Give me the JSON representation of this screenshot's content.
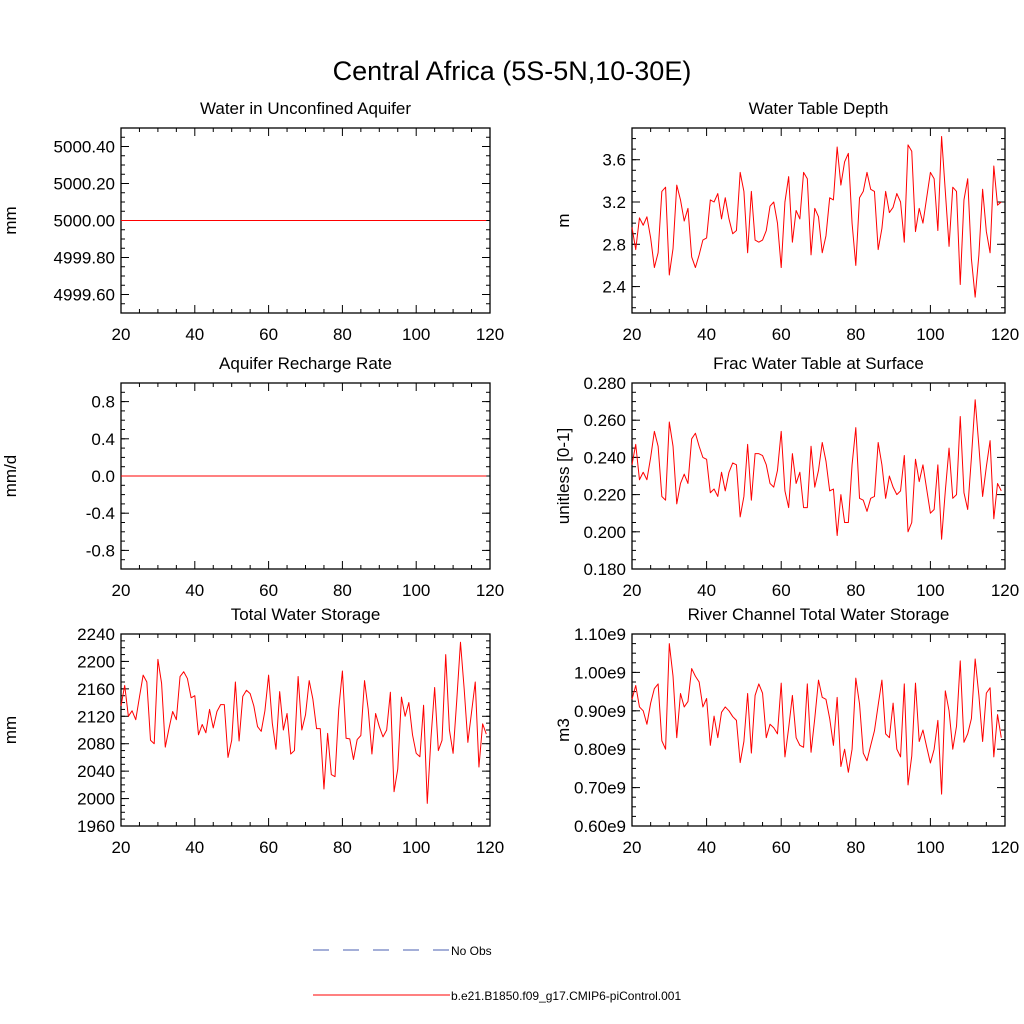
{
  "figure": {
    "title": "Central Africa (5S-5N,10-30E)"
  },
  "legend": {
    "entries": [
      {
        "label": "No Obs",
        "color": "#4a5fb0",
        "dash": true
      },
      {
        "label": "b.e21.B1850.f09_g17.CMIP6-piControl.001",
        "color": "#ff0000",
        "dash": false
      }
    ]
  },
  "chart_data": [
    {
      "type": "line",
      "title": "Water in Unconfined Aquifer",
      "ylabel": "mm",
      "xlim": [
        20,
        120
      ],
      "ylim": [
        4999.5,
        5000.5
      ],
      "xticks": [
        "20",
        "40",
        "60",
        "80",
        "100",
        "120"
      ],
      "yticks": [
        4999.6,
        4999.8,
        5000.0,
        5000.2,
        5000.4
      ],
      "ytick_labels": [
        "4999.60",
        "4999.80",
        "5000.00",
        "5000.20",
        "5000.40"
      ],
      "x_start": 20,
      "series": [
        {
          "name": "b.e21.B1850.f09_g17.CMIP6-piControl.001",
          "color": "#ff0000",
          "values": [
            5000,
            5000,
            5000,
            5000,
            5000,
            5000,
            5000,
            5000,
            5000,
            5000,
            5000,
            5000,
            5000,
            5000,
            5000,
            5000,
            5000,
            5000,
            5000,
            5000,
            5000,
            5000,
            5000,
            5000,
            5000,
            5000,
            5000,
            5000,
            5000,
            5000,
            5000,
            5000,
            5000,
            5000,
            5000,
            5000,
            5000,
            5000,
            5000,
            5000,
            5000,
            5000,
            5000,
            5000,
            5000,
            5000,
            5000,
            5000,
            5000,
            5000,
            5000,
            5000,
            5000,
            5000,
            5000,
            5000,
            5000,
            5000,
            5000,
            5000,
            5000,
            5000,
            5000,
            5000,
            5000,
            5000,
            5000,
            5000,
            5000,
            5000,
            5000,
            5000,
            5000,
            5000,
            5000,
            5000,
            5000,
            5000,
            5000,
            5000,
            5000,
            5000,
            5000,
            5000,
            5000,
            5000,
            5000,
            5000,
            5000,
            5000,
            5000,
            5000,
            5000,
            5000,
            5000,
            5000,
            5000,
            5000,
            5000,
            5000
          ]
        }
      ]
    },
    {
      "type": "line",
      "title": "Water Table Depth",
      "ylabel": "m",
      "xlim": [
        20,
        120
      ],
      "ylim": [
        2.15,
        3.9
      ],
      "xticks": [
        "20",
        "40",
        "60",
        "80",
        "100",
        "120"
      ],
      "yticks": [
        2.4,
        2.8,
        3.2,
        3.6
      ],
      "ytick_labels": [
        "2.4",
        "2.8",
        "3.2",
        "3.6"
      ],
      "x_start": 20,
      "series": [
        {
          "name": "b.e21.B1850.f09_g17.CMIP6-piControl.001",
          "color": "#ff0000",
          "values": [
            2.96,
            2.75,
            3.05,
            2.98,
            3.06,
            2.86,
            2.58,
            2.72,
            3.3,
            3.34,
            2.51,
            2.76,
            3.36,
            3.22,
            3.02,
            3.14,
            2.68,
            2.58,
            2.7,
            2.84,
            2.86,
            3.22,
            3.2,
            3.28,
            3.04,
            3.24,
            3.04,
            2.9,
            2.93,
            3.48,
            3.3,
            2.72,
            3.3,
            2.84,
            2.82,
            2.84,
            2.93,
            3.16,
            3.2,
            3.0,
            2.58,
            3.2,
            3.44,
            2.82,
            3.12,
            3.04,
            3.48,
            3.42,
            2.7,
            3.14,
            3.06,
            2.72,
            2.88,
            3.24,
            3.22,
            3.72,
            3.36,
            3.58,
            3.66,
            3.0,
            2.6,
            3.24,
            3.3,
            3.48,
            3.32,
            3.3,
            2.75,
            2.95,
            3.3,
            3.1,
            3.15,
            3.28,
            3.2,
            2.82,
            3.74,
            3.68,
            2.92,
            3.14,
            3.0,
            3.24,
            3.48,
            3.42,
            2.93,
            3.82,
            3.3,
            2.78,
            3.34,
            3.3,
            2.42,
            3.22,
            3.42,
            2.66,
            2.3,
            2.7,
            3.32,
            2.92,
            2.72,
            3.54,
            3.17,
            3.2
          ]
        }
      ]
    },
    {
      "type": "line",
      "title": "Aquifer Recharge Rate",
      "ylabel": "mm/d",
      "xlim": [
        20,
        120
      ],
      "ylim": [
        -1.0,
        1.0
      ],
      "xticks": [
        "20",
        "40",
        "60",
        "80",
        "100",
        "120"
      ],
      "yticks": [
        -0.8,
        -0.4,
        0.0,
        0.4,
        0.8
      ],
      "ytick_labels": [
        "-0.8",
        "-0.4",
        "0.0",
        "0.4",
        "0.8"
      ],
      "x_start": 20,
      "series": [
        {
          "name": "b.e21.B1850.f09_g17.CMIP6-piControl.001",
          "color": "#ff0000",
          "values": [
            0,
            0,
            0,
            0,
            0,
            0,
            0,
            0,
            0,
            0,
            0,
            0,
            0,
            0,
            0,
            0,
            0,
            0,
            0,
            0,
            0,
            0,
            0,
            0,
            0,
            0,
            0,
            0,
            0,
            0,
            0,
            0,
            0,
            0,
            0,
            0,
            0,
            0,
            0,
            0,
            0,
            0,
            0,
            0,
            0,
            0,
            0,
            0,
            0,
            0,
            0,
            0,
            0,
            0,
            0,
            0,
            0,
            0,
            0,
            0,
            0,
            0,
            0,
            0,
            0,
            0,
            0,
            0,
            0,
            0,
            0,
            0,
            0,
            0,
            0,
            0,
            0,
            0,
            0,
            0,
            0,
            0,
            0,
            0,
            0,
            0,
            0,
            0,
            0,
            0,
            0,
            0,
            0,
            0,
            0,
            0,
            0,
            0,
            0,
            0
          ]
        }
      ]
    },
    {
      "type": "line",
      "title": "Frac Water Table at Surface",
      "ylabel": "unitless [0-1]",
      "xlim": [
        20,
        120
      ],
      "ylim": [
        0.18,
        0.28
      ],
      "xticks": [
        "20",
        "40",
        "60",
        "80",
        "100",
        "120"
      ],
      "yticks": [
        0.18,
        0.2,
        0.22,
        0.24,
        0.26,
        0.28
      ],
      "ytick_labels": [
        "0.180",
        "0.200",
        "0.220",
        "0.240",
        "0.260",
        "0.280"
      ],
      "x_start": 20,
      "series": [
        {
          "name": "b.e21.B1850.f09_g17.CMIP6-piControl.001",
          "color": "#ff0000",
          "values": [
            0.236,
            0.247,
            0.228,
            0.232,
            0.228,
            0.24,
            0.254,
            0.246,
            0.219,
            0.217,
            0.259,
            0.246,
            0.215,
            0.226,
            0.231,
            0.226,
            0.25,
            0.253,
            0.246,
            0.24,
            0.239,
            0.221,
            0.223,
            0.219,
            0.232,
            0.222,
            0.232,
            0.237,
            0.236,
            0.208,
            0.219,
            0.247,
            0.217,
            0.242,
            0.242,
            0.241,
            0.236,
            0.226,
            0.224,
            0.233,
            0.254,
            0.222,
            0.213,
            0.242,
            0.226,
            0.232,
            0.213,
            0.213,
            0.246,
            0.224,
            0.233,
            0.248,
            0.238,
            0.222,
            0.223,
            0.198,
            0.22,
            0.205,
            0.205,
            0.236,
            0.256,
            0.218,
            0.217,
            0.211,
            0.218,
            0.219,
            0.248,
            0.236,
            0.218,
            0.23,
            0.224,
            0.22,
            0.222,
            0.241,
            0.2,
            0.205,
            0.239,
            0.227,
            0.236,
            0.223,
            0.21,
            0.212,
            0.236,
            0.196,
            0.222,
            0.245,
            0.218,
            0.22,
            0.262,
            0.221,
            0.212,
            0.24,
            0.271,
            0.246,
            0.219,
            0.235,
            0.249,
            0.207,
            0.226,
            0.222
          ]
        }
      ]
    },
    {
      "type": "line",
      "title": "Total Water Storage",
      "ylabel": "mm",
      "xlim": [
        20,
        120
      ],
      "ylim": [
        1960,
        2240
      ],
      "xticks": [
        "20",
        "40",
        "60",
        "80",
        "100",
        "120"
      ],
      "yticks": [
        1960,
        2000,
        2040,
        2080,
        2120,
        2160,
        2200,
        2240
      ],
      "ytick_labels": [
        "1960",
        "2000",
        "2040",
        "2080",
        "2120",
        "2160",
        "2200",
        "2240"
      ],
      "x_start": 20,
      "series": [
        {
          "name": "b.e21.B1850.f09_g17.CMIP6-piControl.001",
          "color": "#ff0000",
          "values": [
            2135,
            2165,
            2120,
            2128,
            2115,
            2148,
            2180,
            2170,
            2085,
            2080,
            2203,
            2168,
            2075,
            2102,
            2127,
            2115,
            2178,
            2185,
            2175,
            2147,
            2150,
            2093,
            2108,
            2096,
            2130,
            2103,
            2127,
            2137,
            2137,
            2060,
            2085,
            2170,
            2084,
            2149,
            2158,
            2153,
            2135,
            2105,
            2098,
            2128,
            2180,
            2110,
            2072,
            2156,
            2100,
            2124,
            2065,
            2070,
            2178,
            2100,
            2122,
            2172,
            2145,
            2102,
            2102,
            2014,
            2095,
            2035,
            2032,
            2130,
            2186,
            2088,
            2087,
            2057,
            2086,
            2092,
            2172,
            2130,
            2065,
            2124,
            2105,
            2090,
            2100,
            2155,
            2010,
            2043,
            2148,
            2120,
            2140,
            2093,
            2066,
            2061,
            2136,
            1993,
            2088,
            2162,
            2070,
            2085,
            2210,
            2100,
            2066,
            2144,
            2228,
            2160,
            2082,
            2126,
            2170,
            2046,
            2109,
            2094
          ]
        }
      ]
    },
    {
      "type": "line",
      "title": "River Channel Total Water Storage",
      "ylabel": "m3",
      "xlim": [
        20,
        120
      ],
      "ylim": [
        0.6,
        1.1
      ],
      "xticks": [
        "20",
        "40",
        "60",
        "80",
        "100",
        "120"
      ],
      "yticks": [
        0.6,
        0.7,
        0.8,
        0.9,
        1.0,
        1.1
      ],
      "ytick_labels": [
        "0.60e9",
        "0.70e9",
        "0.80e9",
        "0.90e9",
        "1.00e9",
        "1.10e9"
      ],
      "x_start": 20,
      "series": [
        {
          "name": "b.e21.B1850.f09_g17.CMIP6-piControl.001",
          "color": "#ff0000",
          "values": [
            0.93,
            0.966,
            0.91,
            0.9,
            0.865,
            0.92,
            0.958,
            0.97,
            0.822,
            0.8,
            1.075,
            0.99,
            0.83,
            0.945,
            0.91,
            0.924,
            1.01,
            0.99,
            0.975,
            0.91,
            0.932,
            0.81,
            0.886,
            0.83,
            0.896,
            0.91,
            0.9,
            0.885,
            0.875,
            0.765,
            0.82,
            0.945,
            0.79,
            0.94,
            0.97,
            0.946,
            0.83,
            0.865,
            0.856,
            0.84,
            0.972,
            0.78,
            0.855,
            0.94,
            0.83,
            0.81,
            0.805,
            0.97,
            0.792,
            0.88,
            0.98,
            0.935,
            0.93,
            0.88,
            0.81,
            0.935,
            0.755,
            0.8,
            0.74,
            0.8,
            0.985,
            0.918,
            0.79,
            0.77,
            0.81,
            0.848,
            0.915,
            0.98,
            0.84,
            0.83,
            0.92,
            0.8,
            0.78,
            0.97,
            0.707,
            0.782,
            0.972,
            0.82,
            0.85,
            0.806,
            0.764,
            0.8,
            0.875,
            0.683,
            0.952,
            0.9,
            0.8,
            0.86,
            1.03,
            0.818,
            0.84,
            0.88,
            1.035,
            0.94,
            0.82,
            0.946,
            0.96,
            0.78,
            0.89,
            0.83
          ]
        }
      ]
    }
  ]
}
